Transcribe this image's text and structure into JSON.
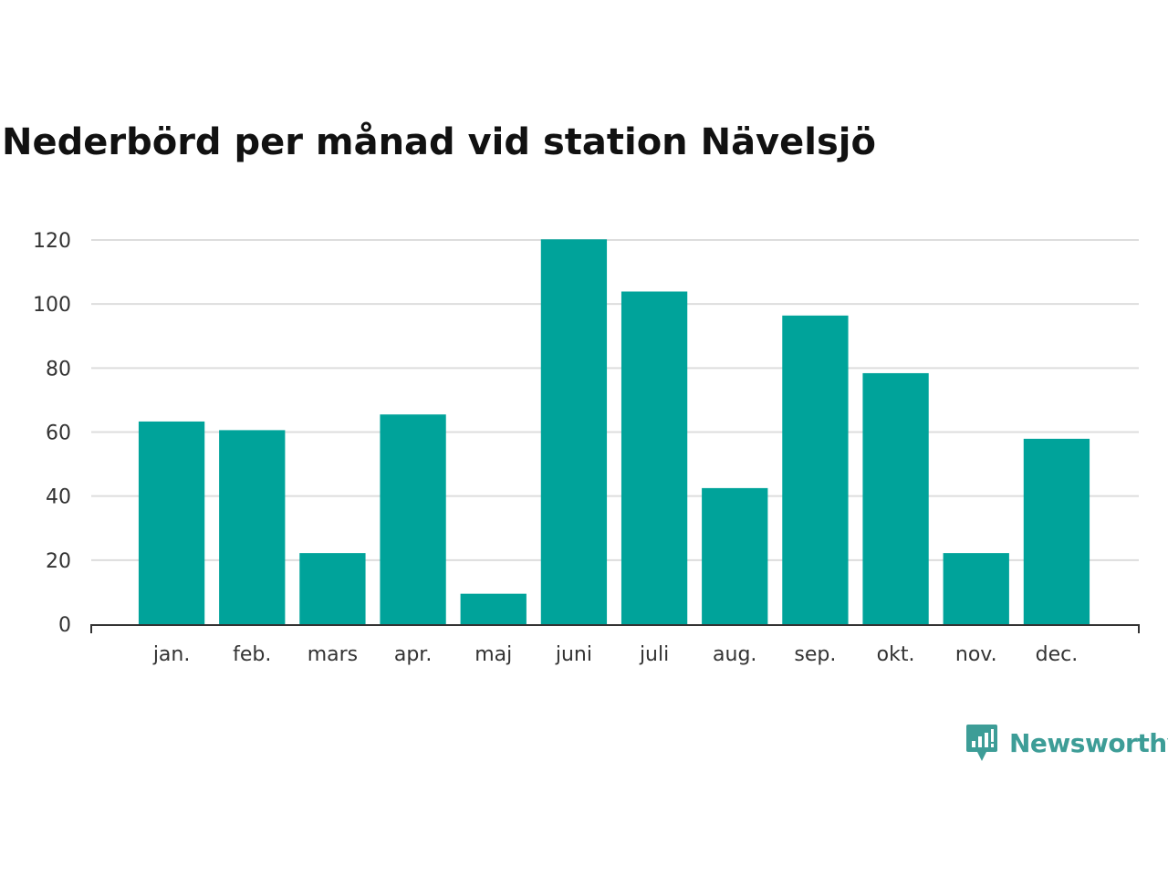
{
  "chart_data": {
    "type": "bar",
    "title": "Nederbörd per månad vid station Nävelsjö",
    "xlabel": "",
    "ylabel": "",
    "categories": [
      "jan.",
      "feb.",
      "mars",
      "apr.",
      "maj",
      "juni",
      "juli",
      "aug.",
      "sep.",
      "okt.",
      "nov.",
      "dec."
    ],
    "values": [
      63.3,
      60.6,
      22.2,
      65.5,
      9.5,
      120.2,
      103.9,
      42.5,
      96.4,
      78.4,
      22.2,
      57.9
    ],
    "ylim": [
      0,
      120
    ],
    "yticks": [
      0,
      20,
      40,
      60,
      80,
      100,
      120
    ],
    "grid": true,
    "bar_color": "#00a39a",
    "grid_color": "#dddddd",
    "axis_color": "#333333"
  },
  "brand": {
    "name": "Newsworthy",
    "icon": "newsworthy-logo-icon",
    "color": "#3d9d97"
  }
}
